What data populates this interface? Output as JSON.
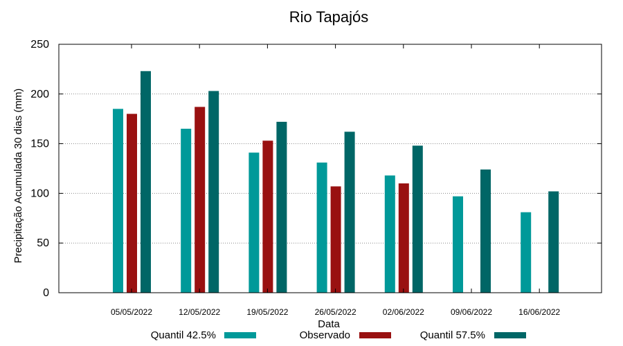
{
  "chart_data": {
    "type": "bar",
    "title": "Rio Tapajós",
    "xlabel": "Data",
    "ylabel": "Precipitação Acumulada 30 dias (mm)",
    "ylim": [
      0,
      250
    ],
    "yticks": [
      0,
      50,
      100,
      150,
      200,
      250
    ],
    "grid": true,
    "categories": [
      "05/05/2022",
      "12/05/2022",
      "19/05/2022",
      "26/05/2022",
      "02/06/2022",
      "09/06/2022",
      "16/06/2022"
    ],
    "series": [
      {
        "name": "Quantil 42.5%",
        "color": "#009999",
        "values": [
          185,
          165,
          141,
          131,
          118,
          97,
          81
        ]
      },
      {
        "name": "Observado",
        "color": "#991111",
        "values": [
          180,
          187,
          153,
          107,
          110,
          null,
          null
        ]
      },
      {
        "name": "Quantil 57.5%",
        "color": "#006666",
        "values": [
          223,
          203,
          172,
          162,
          148,
          124,
          102
        ]
      }
    ],
    "legend_position": "bottom"
  }
}
